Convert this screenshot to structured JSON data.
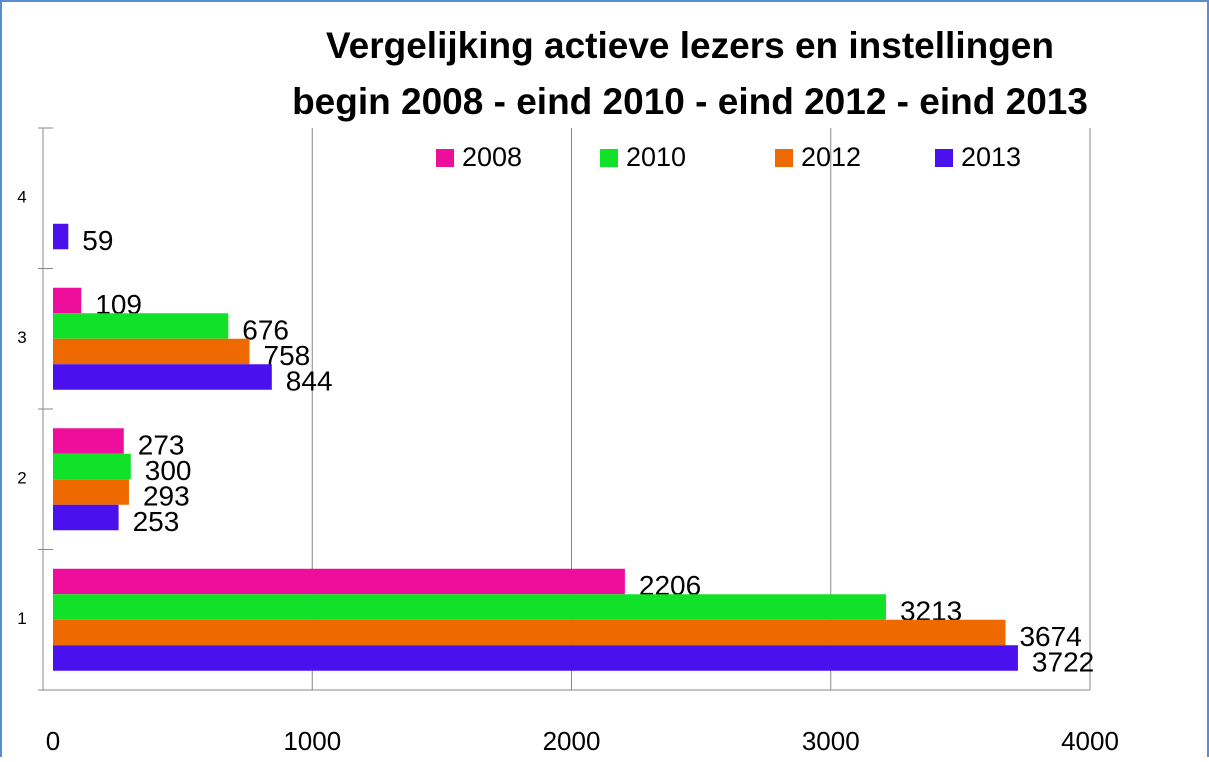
{
  "chart_data": {
    "type": "hbar",
    "title": [
      "Vergelijking actieve lezers en instellingen",
      "begin 2008 - eind 2010 - eind 2012 - eind 2013"
    ],
    "categories": [
      "1",
      "2",
      "3",
      "4"
    ],
    "series": [
      {
        "name": "2008",
        "color": "#ee0e9c",
        "values": [
          2206,
          273,
          109,
          null
        ]
      },
      {
        "name": "2010",
        "color": "#12e12a",
        "values": [
          3213,
          300,
          676,
          null
        ]
      },
      {
        "name": "2012",
        "color": "#ee6a00",
        "values": [
          3674,
          293,
          758,
          null
        ]
      },
      {
        "name": "2013",
        "color": "#4a10ee",
        "values": [
          3722,
          253,
          844,
          59
        ]
      }
    ],
    "xlim": [
      0,
      4000
    ],
    "xticks": [
      0,
      1000,
      2000,
      3000,
      4000
    ],
    "grid": true
  }
}
